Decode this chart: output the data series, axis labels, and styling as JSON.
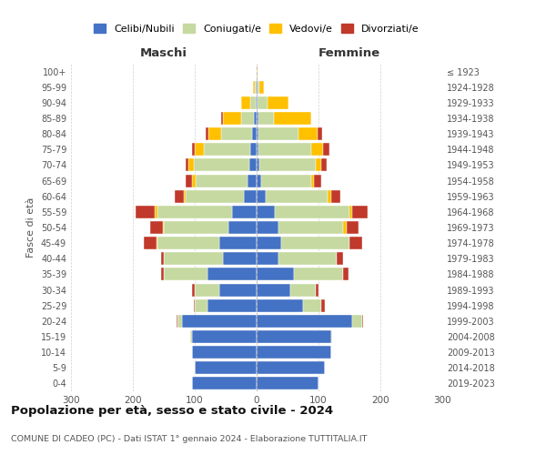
{
  "age_groups": [
    "0-4",
    "5-9",
    "10-14",
    "15-19",
    "20-24",
    "25-29",
    "30-34",
    "35-39",
    "40-44",
    "45-49",
    "50-54",
    "55-59",
    "60-64",
    "65-69",
    "70-74",
    "75-79",
    "80-84",
    "85-89",
    "90-94",
    "95-99",
    "100+"
  ],
  "birth_years": [
    "2019-2023",
    "2014-2018",
    "2009-2013",
    "2004-2008",
    "1999-2003",
    "1994-1998",
    "1989-1993",
    "1984-1988",
    "1979-1983",
    "1974-1978",
    "1969-1973",
    "1964-1968",
    "1959-1963",
    "1954-1958",
    "1949-1953",
    "1944-1948",
    "1939-1943",
    "1934-1938",
    "1929-1933",
    "1924-1928",
    "≤ 1923"
  ],
  "maschi": {
    "celibi": [
      105,
      100,
      105,
      105,
      120,
      80,
      60,
      80,
      55,
      60,
      45,
      40,
      20,
      14,
      12,
      10,
      8,
      5,
      2,
      1,
      0
    ],
    "coniugati": [
      0,
      0,
      0,
      2,
      8,
      20,
      40,
      70,
      95,
      100,
      105,
      120,
      95,
      85,
      90,
      75,
      50,
      20,
      8,
      2,
      0
    ],
    "vedove": [
      0,
      0,
      0,
      0,
      0,
      0,
      0,
      0,
      0,
      2,
      2,
      5,
      3,
      5,
      8,
      15,
      20,
      30,
      15,
      3,
      0
    ],
    "divorziate": [
      0,
      0,
      0,
      0,
      1,
      2,
      5,
      5,
      5,
      20,
      20,
      30,
      15,
      10,
      5,
      5,
      4,
      3,
      0,
      0,
      0
    ]
  },
  "femmine": {
    "celibi": [
      100,
      110,
      120,
      120,
      155,
      75,
      55,
      60,
      35,
      40,
      35,
      30,
      15,
      8,
      5,
      3,
      3,
      3,
      2,
      1,
      0
    ],
    "coniugati": [
      0,
      0,
      0,
      2,
      15,
      30,
      40,
      80,
      95,
      110,
      105,
      120,
      100,
      80,
      90,
      85,
      65,
      25,
      15,
      3,
      0
    ],
    "vedove": [
      0,
      0,
      0,
      0,
      0,
      0,
      0,
      0,
      0,
      0,
      5,
      5,
      5,
      5,
      10,
      20,
      30,
      60,
      35,
      8,
      2
    ],
    "divorziate": [
      0,
      0,
      0,
      0,
      2,
      5,
      5,
      8,
      10,
      20,
      20,
      25,
      15,
      12,
      8,
      10,
      8,
      0,
      0,
      0,
      0
    ]
  },
  "colors": {
    "celibi": "#4472c4",
    "coniugati": "#c5d9a0",
    "vedove": "#ffc000",
    "divorziate": "#c0392b"
  },
  "legend_labels": [
    "Celibi/Nubili",
    "Coniugati/e",
    "Vedovi/e",
    "Divorziati/e"
  ],
  "title": "Popolazione per età, sesso e stato civile - 2024",
  "subtitle": "COMUNE DI CADEO (PC) - Dati ISTAT 1° gennaio 2024 - Elaborazione TUTTITALIA.IT",
  "xlabel_maschi": "Maschi",
  "xlabel_femmine": "Femmine",
  "ylabel_left": "Fasce di età",
  "xlim": 300,
  "background_color": "#ffffff",
  "grid_color": "#cccccc"
}
